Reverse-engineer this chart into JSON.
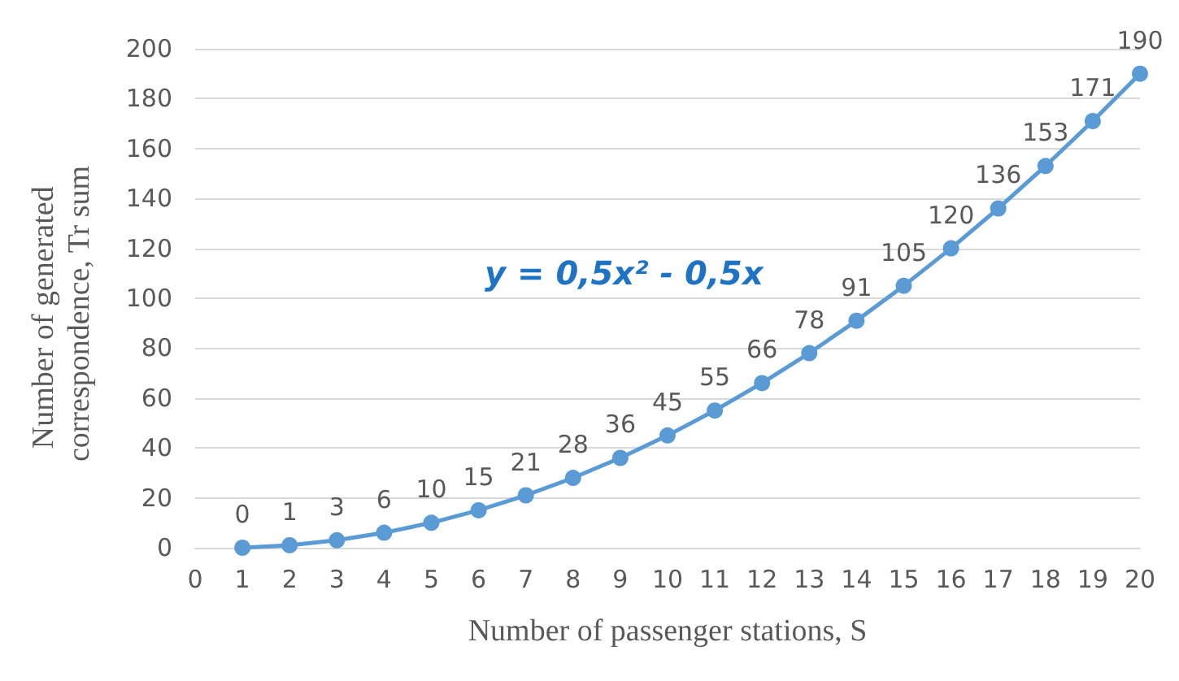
{
  "chart_data": {
    "type": "line",
    "xlabel": "Number of passenger stations, S",
    "ylabel": "Number of generated correspondence, Tr sum",
    "x": [
      1,
      2,
      3,
      4,
      5,
      6,
      7,
      8,
      9,
      10,
      11,
      12,
      13,
      14,
      15,
      16,
      17,
      18,
      19,
      20
    ],
    "series": [
      {
        "color": "#5b9bd5",
        "values": [
          0,
          1,
          3,
          6,
          10,
          15,
          21,
          28,
          36,
          45,
          55,
          66,
          78,
          91,
          105,
          120,
          136,
          153,
          171,
          190
        ]
      }
    ],
    "xlim": [
      0,
      20
    ],
    "xticks": [
      0,
      1,
      2,
      3,
      4,
      5,
      6,
      7,
      8,
      9,
      10,
      11,
      12,
      13,
      14,
      15,
      16,
      17,
      18,
      19,
      20
    ],
    "ylim": [
      0,
      200
    ],
    "yticks": [
      0,
      20,
      40,
      60,
      80,
      100,
      120,
      140,
      160,
      180,
      200
    ],
    "grid": "y",
    "marker": "circle",
    "line_style": "solid",
    "data_labels": true,
    "annotations": [
      "y = 0,5x² - 0,5x"
    ]
  }
}
